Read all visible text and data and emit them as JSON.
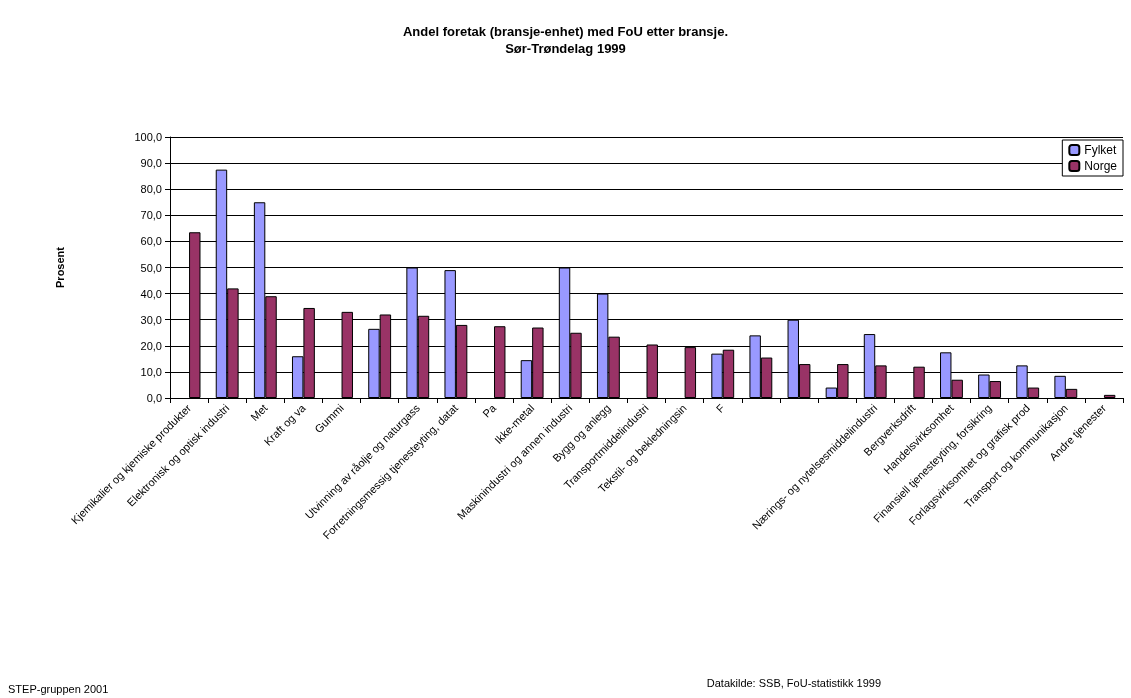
{
  "chart_data": {
    "type": "bar",
    "title": "Andel foretak (bransje-enhet) med FoU etter bransje.\nSør-Trøndelag 1999",
    "ylabel": "Prosent",
    "annotations": [
      "STEP-gruppen 2001",
      "Datakilde: SSB, FoU-statistikk 1999"
    ],
    "categories": [
      "Kjemikalier og kjemiske produkter",
      "Elektronisk og optisk industri",
      "Met",
      "Kraft og va",
      "Gummi",
      null,
      "Utvinning av råolje og naturgass",
      "Forretningsmessig tjenesteyting, datat",
      "Pa",
      "Ikke-metal",
      "Maskinindustri og annen industri",
      "Bygg og anlegg",
      "Transportmiddelindustri",
      "Tekstil- og bekledningsin",
      "F",
      null,
      null,
      null,
      "Nærings- og nytelsesmiddelindustri",
      "Bergverksdrift",
      "Handelsvirksomhet",
      "Finansiell tjenesteyting, forsikring",
      "Forlagsvirksomhet og grafisk prod",
      "Transport og kommunikasjon",
      "Andre tjenester"
    ],
    "series": [
      {
        "name": "Fylket",
        "color": "#9999ff",
        "values": [
          null,
          87.5,
          75,
          16,
          null,
          26.5,
          50,
          49,
          null,
          14.5,
          50,
          40,
          null,
          null,
          17,
          24,
          30,
          4,
          24.5,
          null,
          17.5,
          9,
          12.5,
          8.5,
          null
        ]
      },
      {
        "name": "Norge",
        "color": "#993366",
        "values": [
          63.5,
          42,
          39,
          34.5,
          33,
          32,
          31.5,
          28,
          27.5,
          27,
          25,
          23.5,
          20.5,
          19.5,
          18.5,
          15.5,
          13,
          13,
          12.5,
          12,
          7,
          6.5,
          4,
          3.5,
          1.2
        ]
      }
    ],
    "ylim": [
      0,
      100
    ],
    "yticks": [
      {
        "value": 0,
        "label": "0,0"
      },
      {
        "value": 10,
        "label": "10,0"
      },
      {
        "value": 20,
        "label": "20,0"
      },
      {
        "value": 30,
        "label": "30,0"
      },
      {
        "value": 40,
        "label": "40,0"
      },
      {
        "value": 50,
        "label": "50,0"
      },
      {
        "value": 60,
        "label": "60,0"
      },
      {
        "value": 70,
        "label": "70,0"
      },
      {
        "value": 80,
        "label": "80,0"
      },
      {
        "value": 90,
        "label": "90,0"
      },
      {
        "value": 100,
        "label": "100,0"
      }
    ],
    "grid": "y",
    "legend": "top right"
  }
}
